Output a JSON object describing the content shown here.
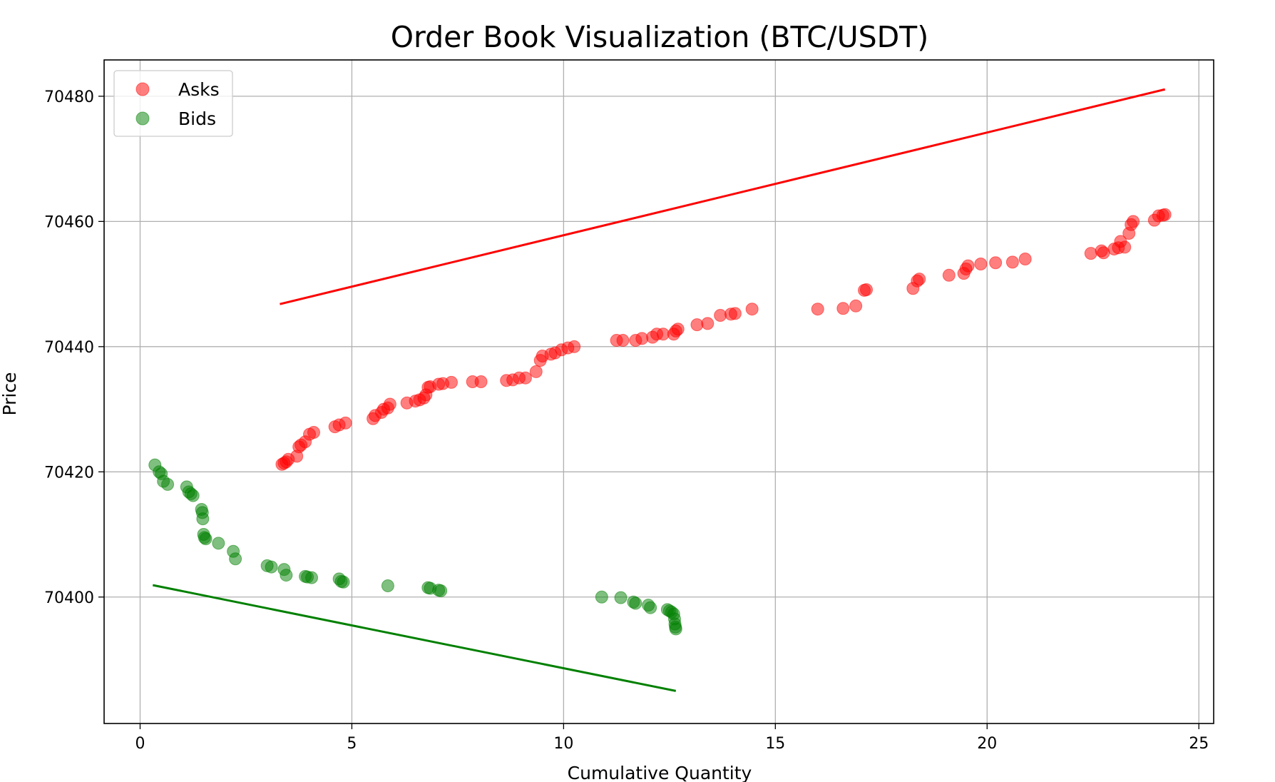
{
  "chart_data": {
    "type": "scatter",
    "title": "Order Book Visualization (BTC/USDT)",
    "xlabel": "Cumulative Quantity",
    "ylabel": "Price",
    "xlim": [
      -0.85,
      25.35
    ],
    "ylim": [
      70379.8,
      70485.8
    ],
    "xticks": [
      0,
      5,
      10,
      15,
      20,
      25
    ],
    "yticks": [
      70400,
      70420,
      70440,
      70460,
      70480
    ],
    "grid": true,
    "legend_position": "top-left",
    "series": [
      {
        "name": "Asks",
        "kind": "scatter",
        "color": "#ff0000",
        "points": [
          [
            3.35,
            70421.2
          ],
          [
            3.4,
            70421.4
          ],
          [
            3.45,
            70421.6
          ],
          [
            3.5,
            70422.0
          ],
          [
            3.7,
            70422.5
          ],
          [
            3.75,
            70424.0
          ],
          [
            3.8,
            70424.3
          ],
          [
            3.9,
            70424.8
          ],
          [
            4.0,
            70426.0
          ],
          [
            4.1,
            70426.3
          ],
          [
            4.6,
            70427.2
          ],
          [
            4.7,
            70427.5
          ],
          [
            4.85,
            70427.8
          ],
          [
            5.5,
            70428.5
          ],
          [
            5.55,
            70429.0
          ],
          [
            5.7,
            70429.5
          ],
          [
            5.75,
            70430.0
          ],
          [
            5.85,
            70430.2
          ],
          [
            5.9,
            70430.8
          ],
          [
            6.3,
            70431.0
          ],
          [
            6.5,
            70431.3
          ],
          [
            6.6,
            70431.5
          ],
          [
            6.7,
            70431.8
          ],
          [
            6.75,
            70432.3
          ],
          [
            6.8,
            70433.5
          ],
          [
            6.85,
            70433.6
          ],
          [
            7.05,
            70434.0
          ],
          [
            7.15,
            70434.1
          ],
          [
            7.35,
            70434.3
          ],
          [
            7.85,
            70434.4
          ],
          [
            8.05,
            70434.4
          ],
          [
            8.65,
            70434.6
          ],
          [
            8.8,
            70434.7
          ],
          [
            8.95,
            70435.0
          ],
          [
            9.1,
            70435.0
          ],
          [
            9.35,
            70436.0
          ],
          [
            9.45,
            70437.8
          ],
          [
            9.5,
            70438.5
          ],
          [
            9.7,
            70438.8
          ],
          [
            9.8,
            70439.0
          ],
          [
            9.95,
            70439.5
          ],
          [
            10.1,
            70439.8
          ],
          [
            10.25,
            70440.0
          ],
          [
            11.25,
            70441.0
          ],
          [
            11.4,
            70441.0
          ],
          [
            11.7,
            70441.0
          ],
          [
            11.85,
            70441.3
          ],
          [
            12.1,
            70441.5
          ],
          [
            12.2,
            70442.0
          ],
          [
            12.35,
            70442.0
          ],
          [
            12.6,
            70442.0
          ],
          [
            12.65,
            70442.5
          ],
          [
            12.7,
            70442.8
          ],
          [
            13.15,
            70443.5
          ],
          [
            13.4,
            70443.7
          ],
          [
            13.7,
            70445.0
          ],
          [
            13.95,
            70445.2
          ],
          [
            14.05,
            70445.3
          ],
          [
            14.45,
            70446.0
          ],
          [
            16.0,
            70446.0
          ],
          [
            16.6,
            70446.1
          ],
          [
            16.9,
            70446.5
          ],
          [
            17.1,
            70449.0
          ],
          [
            17.15,
            70449.1
          ],
          [
            18.25,
            70449.3
          ],
          [
            18.35,
            70450.5
          ],
          [
            18.4,
            70450.8
          ],
          [
            19.1,
            70451.4
          ],
          [
            19.45,
            70451.7
          ],
          [
            19.5,
            70452.4
          ],
          [
            19.55,
            70452.9
          ],
          [
            19.85,
            70453.2
          ],
          [
            20.2,
            70453.4
          ],
          [
            20.6,
            70453.5
          ],
          [
            20.9,
            70454.0
          ],
          [
            22.45,
            70454.9
          ],
          [
            22.7,
            70455.3
          ],
          [
            22.75,
            70455.0
          ],
          [
            23.0,
            70455.6
          ],
          [
            23.1,
            70455.8
          ],
          [
            23.15,
            70456.8
          ],
          [
            23.25,
            70455.9
          ],
          [
            23.35,
            70458.1
          ],
          [
            23.4,
            70459.5
          ],
          [
            23.45,
            70460.0
          ],
          [
            23.95,
            70460.2
          ],
          [
            24.05,
            70460.9
          ],
          [
            24.15,
            70461.0
          ],
          [
            24.2,
            70461.1
          ]
        ]
      },
      {
        "name": "Bids",
        "kind": "scatter",
        "color": "#008000",
        "points": [
          [
            0.35,
            70421.1
          ],
          [
            0.45,
            70420.0
          ],
          [
            0.5,
            70419.7
          ],
          [
            0.55,
            70418.5
          ],
          [
            0.65,
            70418.0
          ],
          [
            1.1,
            70417.6
          ],
          [
            1.15,
            70416.8
          ],
          [
            1.2,
            70416.5
          ],
          [
            1.25,
            70416.2
          ],
          [
            1.45,
            70414.0
          ],
          [
            1.47,
            70413.5
          ],
          [
            1.48,
            70412.5
          ],
          [
            1.5,
            70410.0
          ],
          [
            1.52,
            70409.5
          ],
          [
            1.55,
            70409.3
          ],
          [
            1.85,
            70408.6
          ],
          [
            2.2,
            70407.3
          ],
          [
            2.25,
            70406.1
          ],
          [
            3.0,
            70405.0
          ],
          [
            3.1,
            70404.8
          ],
          [
            3.4,
            70404.4
          ],
          [
            3.45,
            70403.5
          ],
          [
            3.9,
            70403.3
          ],
          [
            3.95,
            70403.2
          ],
          [
            4.05,
            70403.1
          ],
          [
            4.7,
            70402.9
          ],
          [
            4.75,
            70402.5
          ],
          [
            4.8,
            70402.4
          ],
          [
            5.85,
            70401.8
          ],
          [
            6.8,
            70401.5
          ],
          [
            6.85,
            70401.4
          ],
          [
            7.05,
            70401.1
          ],
          [
            7.1,
            70401.0
          ],
          [
            10.9,
            70400.0
          ],
          [
            11.35,
            70399.9
          ],
          [
            11.65,
            70399.2
          ],
          [
            11.7,
            70399.0
          ],
          [
            12.0,
            70398.7
          ],
          [
            12.05,
            70398.3
          ],
          [
            12.45,
            70398.0
          ],
          [
            12.5,
            70397.8
          ],
          [
            12.55,
            70397.6
          ],
          [
            12.6,
            70397.3
          ],
          [
            12.62,
            70396.5
          ],
          [
            12.63,
            70395.7
          ],
          [
            12.64,
            70395.2
          ],
          [
            12.65,
            70394.9
          ]
        ]
      },
      {
        "kind": "line",
        "color": "#ff0000",
        "points": [
          [
            3.3,
            70446.8
          ],
          [
            24.2,
            70481.1
          ]
        ]
      },
      {
        "kind": "line",
        "color": "#008000",
        "points": [
          [
            0.3,
            70401.9
          ],
          [
            12.65,
            70385.0
          ]
        ]
      }
    ]
  }
}
